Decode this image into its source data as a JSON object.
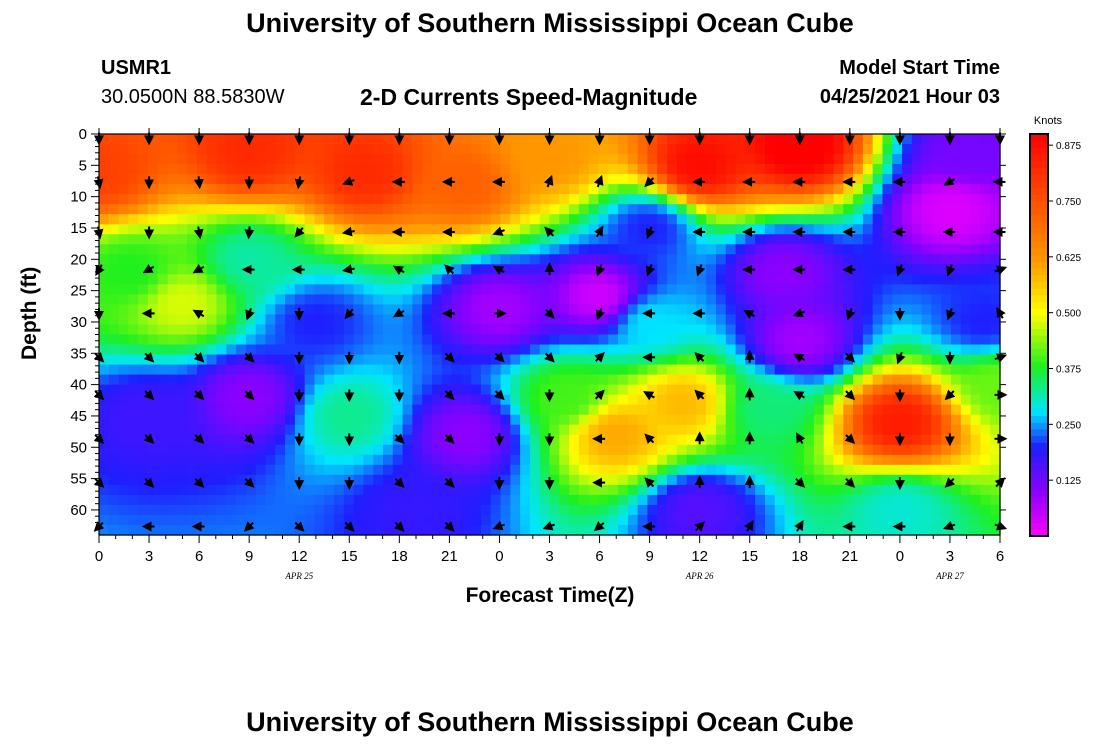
{
  "header": {
    "title": "University of Southern Mississippi Ocean Cube",
    "footer_title": "University of Southern Mississippi Ocean Cube",
    "station": "USMR1",
    "coords": "30.0500N  88.5830W",
    "plot_title": "2-D Currents Speed-Magnitude",
    "model_start_label": "Model Start Time",
    "model_start_value": "04/25/2021 Hour 03"
  },
  "chart_data": {
    "type": "heatmap",
    "title": "2-D Currents Speed-Magnitude",
    "xlabel": "Forecast Time(Z)",
    "ylabel": "Depth (ft)",
    "x_hours": [
      0,
      54
    ],
    "ylim": [
      0,
      64
    ],
    "x_ticks": [
      "0",
      "3",
      "6",
      "9",
      "12",
      "15",
      "18",
      "21",
      "0",
      "3",
      "6",
      "9",
      "12",
      "15",
      "18",
      "21",
      "0",
      "3",
      "6"
    ],
    "y_ticks": [
      0,
      5,
      10,
      15,
      20,
      25,
      30,
      35,
      40,
      45,
      50,
      55,
      60
    ],
    "date_labels": [
      {
        "text": "APR 25",
        "hour": 12
      },
      {
        "text": "APR 26",
        "hour": 36
      },
      {
        "text": "APR 27",
        "hour": 51
      }
    ],
    "colorbar": {
      "label": "Knots",
      "ticks": [
        "0.875",
        "0.750",
        "0.625",
        "0.500",
        "0.375",
        "0.250",
        "0.125"
      ],
      "tick_values": [
        0.875,
        0.75,
        0.625,
        0.5,
        0.375,
        0.25,
        0.125
      ],
      "range": [
        0,
        0.9
      ]
    },
    "speed_centers": [
      {
        "hour": 0,
        "depth": 6,
        "value": 0.78
      },
      {
        "hour": 9,
        "depth": 3,
        "value": 0.82
      },
      {
        "hour": 16,
        "depth": 6,
        "value": 0.82
      },
      {
        "hour": 22,
        "depth": 8,
        "value": 0.72
      },
      {
        "hour": 27,
        "depth": 4,
        "value": 0.62
      },
      {
        "hour": 36,
        "depth": 5,
        "value": 0.88
      },
      {
        "hour": 42,
        "depth": 2,
        "value": 0.92
      },
      {
        "hour": 51,
        "depth": 12,
        "value": 0.03
      },
      {
        "hour": 52,
        "depth": 3,
        "value": 0.12
      },
      {
        "hour": 30,
        "depth": 26,
        "value": 0.04
      },
      {
        "hour": 24,
        "depth": 28,
        "value": 0.08
      },
      {
        "hour": 22,
        "depth": 48,
        "value": 0.1
      },
      {
        "hour": 19,
        "depth": 60,
        "value": 0.18
      },
      {
        "hour": 9,
        "depth": 42,
        "value": 0.1
      },
      {
        "hour": 3,
        "depth": 45,
        "value": 0.17
      },
      {
        "hour": 5,
        "depth": 27,
        "value": 0.48
      },
      {
        "hour": 13,
        "depth": 30,
        "value": 0.2
      },
      {
        "hour": 15,
        "depth": 45,
        "value": 0.33
      },
      {
        "hour": 31,
        "depth": 48,
        "value": 0.6
      },
      {
        "hour": 35,
        "depth": 43,
        "value": 0.58
      },
      {
        "hour": 28,
        "depth": 42,
        "value": 0.4
      },
      {
        "hour": 40,
        "depth": 44,
        "value": 0.34
      },
      {
        "hour": 36,
        "depth": 60,
        "value": 0.15
      },
      {
        "hour": 42,
        "depth": 33,
        "value": 0.08
      },
      {
        "hour": 48,
        "depth": 46,
        "value": 0.85
      },
      {
        "hour": 48,
        "depth": 60,
        "value": 0.3
      },
      {
        "hour": 53,
        "depth": 30,
        "value": 0.2
      },
      {
        "hour": 41,
        "depth": 22,
        "value": 0.1
      },
      {
        "hour": 33,
        "depth": 15,
        "value": 0.2
      },
      {
        "hour": 33,
        "depth": 30,
        "value": 0.28
      },
      {
        "hour": 2,
        "depth": 22,
        "value": 0.38
      },
      {
        "hour": 9,
        "depth": 20,
        "value": 0.32
      },
      {
        "hour": 54,
        "depth": 40,
        "value": 0.42
      }
    ],
    "arrows": {
      "hours": [
        0,
        3,
        6,
        9,
        12,
        15,
        18,
        21,
        24,
        27,
        30,
        33,
        36,
        39,
        42,
        45,
        48,
        51,
        54
      ],
      "depths": [
        0,
        7,
        15,
        21,
        28,
        35,
        41,
        48,
        55,
        62
      ],
      "directions_deg": [
        [
          180,
          180,
          180,
          180,
          180,
          180,
          180,
          180,
          180,
          180,
          180,
          180,
          180,
          180,
          180,
          180,
          180,
          180,
          180
        ],
        [
          170,
          180,
          175,
          180,
          190,
          250,
          270,
          270,
          270,
          20,
          20,
          225,
          270,
          270,
          270,
          270,
          270,
          240,
          270
        ],
        [
          170,
          180,
          170,
          185,
          220,
          260,
          270,
          270,
          250,
          315,
          30,
          200,
          270,
          270,
          270,
          270,
          270,
          270,
          270
        ],
        [
          210,
          240,
          240,
          270,
          270,
          260,
          300,
          315,
          300,
          0,
          200,
          200,
          200,
          270,
          270,
          270,
          200,
          200,
          70
        ],
        [
          180,
          270,
          300,
          200,
          180,
          220,
          240,
          270,
          90,
          135,
          200,
          270,
          270,
          300,
          250,
          200,
          180,
          200,
          330
        ],
        [
          135,
          135,
          135,
          135,
          180,
          180,
          180,
          135,
          135,
          135,
          45,
          270,
          315,
          0,
          300,
          135,
          200,
          180,
          70
        ],
        [
          135,
          135,
          135,
          135,
          180,
          180,
          180,
          135,
          135,
          180,
          45,
          300,
          315,
          0,
          300,
          135,
          180,
          225,
          90
        ],
        [
          135,
          135,
          135,
          135,
          180,
          180,
          135,
          135,
          180,
          180,
          270,
          315,
          0,
          0,
          330,
          135,
          180,
          180,
          90
        ],
        [
          135,
          135,
          135,
          135,
          180,
          180,
          135,
          135,
          180,
          180,
          270,
          315,
          0,
          0,
          135,
          135,
          180,
          225,
          45
        ],
        [
          225,
          270,
          270,
          225,
          135,
          135,
          135,
          135,
          250,
          250,
          230,
          270,
          45,
          30,
          30,
          270,
          270,
          250,
          110
        ]
      ]
    }
  }
}
